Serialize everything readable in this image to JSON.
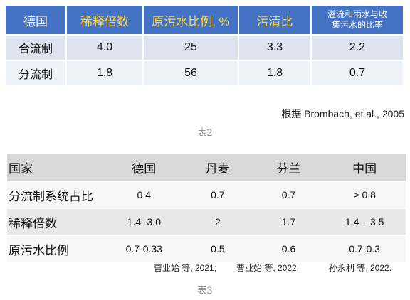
{
  "table1": {
    "headers": [
      "德国",
      "稀释倍数",
      "原污水比例, %",
      "污清比",
      "溢流和雨水与收集污水的比率"
    ],
    "header_line1": "溢流和雨水与收",
    "header_line2": "集污水的比率",
    "rows": [
      [
        "合流制",
        "4.0",
        "25",
        "3.3",
        "2.2"
      ],
      [
        "分流制",
        "1.8",
        "56",
        "1.8",
        "0.7"
      ]
    ]
  },
  "citation1": "根据 Brombach, et al., 2005",
  "caption1": "表2",
  "table2": {
    "headers": [
      "国家",
      "德国",
      "丹麦",
      "芬兰",
      "中国"
    ],
    "rows": [
      [
        "分流制系统占比",
        "0.4",
        "0.7",
        "0.7",
        "> 0.8"
      ],
      [
        "稀释倍数",
        "1.4 -3.0",
        "2",
        "1.7",
        "1.4 – 3.5"
      ],
      [
        "原污水比例",
        "0.7-0.33",
        "0.5",
        "0.6",
        "0.7-0.3"
      ]
    ]
  },
  "citation2a": "曹业始 等, 2021;",
  "citation2b": "曹业始 等, 2022;",
  "citation2c": "孙永利 等, 2022.",
  "caption2": "表3",
  "colors": {
    "header_blue": "#4472c4",
    "header_yellow_text": "#ffd93b",
    "row_light_blue": "#dde3ef",
    "caption_gray": "#8a8a8a"
  }
}
